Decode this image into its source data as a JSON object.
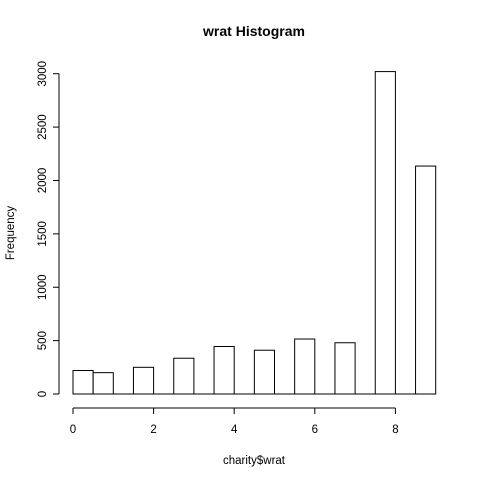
{
  "chart_data": {
    "type": "bar",
    "title": "wrat Histogram",
    "xlabel": "charity$wrat",
    "ylabel": "Frequency",
    "xlim": [
      0,
      9
    ],
    "ylim": [
      0,
      3000
    ],
    "xticks": [
      0,
      2,
      4,
      6,
      8
    ],
    "yticks": [
      0,
      500,
      1000,
      1500,
      2000,
      2500,
      3000
    ],
    "bins": [
      {
        "x0": 0.0,
        "x1": 0.5,
        "count": 220
      },
      {
        "x0": 0.5,
        "x1": 1.0,
        "count": 200
      },
      {
        "x0": 1.0,
        "x1": 1.5,
        "count": 0
      },
      {
        "x0": 1.5,
        "x1": 2.0,
        "count": 250
      },
      {
        "x0": 2.0,
        "x1": 2.5,
        "count": 0
      },
      {
        "x0": 2.5,
        "x1": 3.0,
        "count": 335
      },
      {
        "x0": 3.0,
        "x1": 3.5,
        "count": 0
      },
      {
        "x0": 3.5,
        "x1": 4.0,
        "count": 445
      },
      {
        "x0": 4.0,
        "x1": 4.5,
        "count": 0
      },
      {
        "x0": 4.5,
        "x1": 5.0,
        "count": 410
      },
      {
        "x0": 5.0,
        "x1": 5.5,
        "count": 0
      },
      {
        "x0": 5.5,
        "x1": 6.0,
        "count": 515
      },
      {
        "x0": 6.0,
        "x1": 6.5,
        "count": 0
      },
      {
        "x0": 6.5,
        "x1": 7.0,
        "count": 480
      },
      {
        "x0": 7.0,
        "x1": 7.5,
        "count": 0
      },
      {
        "x0": 7.5,
        "x1": 8.0,
        "count": 3020
      },
      {
        "x0": 8.0,
        "x1": 8.5,
        "count": 0
      },
      {
        "x0": 8.5,
        "x1": 9.0,
        "count": 2135
      }
    ],
    "grid": false,
    "legend": false,
    "colors": {
      "bar_fill": "#ffffff",
      "bar_stroke": "#000000"
    }
  }
}
